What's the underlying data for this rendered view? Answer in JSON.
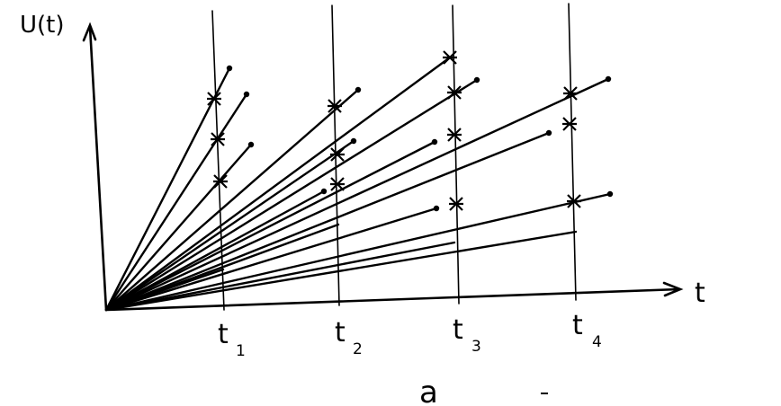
{
  "axes": {
    "y_label": "U(t)",
    "x_label": "t"
  },
  "time_marks": [
    {
      "symbol": "t",
      "index": "1"
    },
    {
      "symbol": "t",
      "index": "2"
    },
    {
      "symbol": "t",
      "index": "3"
    },
    {
      "symbol": "t",
      "index": "4"
    }
  ],
  "caption": "a"
}
